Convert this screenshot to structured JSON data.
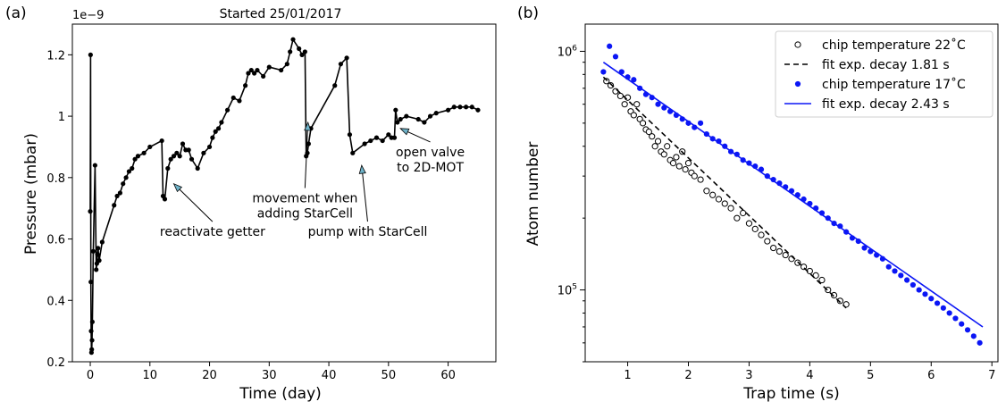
{
  "chart_data": [
    {
      "panel_label": "(a)",
      "type": "line",
      "title": "Started 25/01/2017",
      "xlabel": "Time (day)",
      "ylabel": "Pressure (mbar)",
      "y_multiplier": "1e−9",
      "xlim": [
        -3,
        68
      ],
      "ylim": [
        0.2,
        1.3
      ],
      "xticks": [
        0,
        10,
        20,
        30,
        40,
        50,
        60
      ],
      "yticks": [
        0.2,
        0.4,
        0.6,
        0.8,
        1.0,
        1.2
      ],
      "series": [
        {
          "color": "#000000",
          "x": [
            0.0,
            0.05,
            0.1,
            0.15,
            0.2,
            0.25,
            0.3,
            0.35,
            0.5,
            0.8,
            1.0,
            1.1,
            1.2,
            1.3,
            1.5,
            2.0,
            4.0,
            4.5,
            5.0,
            5.5,
            6.0,
            6.5,
            7.0,
            7.5,
            8.0,
            9.0,
            10.0,
            12.0,
            12.2,
            12.5,
            13.0,
            13.5,
            14.0,
            14.5,
            15.0,
            15.5,
            16.0,
            16.5,
            17.0,
            18.0,
            19.0,
            20.0,
            20.5,
            21.0,
            21.5,
            22.0,
            23.0,
            24.0,
            25.0,
            26.0,
            26.5,
            27.0,
            27.5,
            28.0,
            29.0,
            30.0,
            32.0,
            33.0,
            33.5,
            34.0,
            35.0,
            35.5,
            36.0,
            36.2,
            36.4,
            36.6,
            37.0,
            41.0,
            42.0,
            43.0,
            43.5,
            44.0,
            46.0,
            47.0,
            48.0,
            49.0,
            50.0,
            50.5,
            51.0,
            51.2,
            51.5,
            52.0,
            53.0,
            55.0,
            56.0,
            57.0,
            58.0,
            60.0,
            61.0,
            62.0,
            63.0,
            64.0,
            65.0
          ],
          "y": [
            0.69,
            1.2,
            0.46,
            0.3,
            0.23,
            0.24,
            0.27,
            0.33,
            0.56,
            0.84,
            0.5,
            0.52,
            0.55,
            0.57,
            0.53,
            0.59,
            0.71,
            0.74,
            0.75,
            0.78,
            0.8,
            0.82,
            0.83,
            0.86,
            0.87,
            0.88,
            0.9,
            0.92,
            0.74,
            0.73,
            0.83,
            0.86,
            0.87,
            0.88,
            0.87,
            0.91,
            0.89,
            0.89,
            0.86,
            0.83,
            0.88,
            0.9,
            0.93,
            0.95,
            0.96,
            0.98,
            1.02,
            1.06,
            1.05,
            1.1,
            1.14,
            1.15,
            1.14,
            1.15,
            1.13,
            1.16,
            1.15,
            1.17,
            1.21,
            1.25,
            1.22,
            1.2,
            1.21,
            0.87,
            0.88,
            0.91,
            0.96,
            1.1,
            1.17,
            1.19,
            0.94,
            0.88,
            0.91,
            0.92,
            0.93,
            0.92,
            0.94,
            0.93,
            0.93,
            1.02,
            0.98,
            0.99,
            1.0,
            0.99,
            0.98,
            1.0,
            1.01,
            1.02,
            1.03,
            1.03,
            1.03,
            1.03,
            1.02
          ]
        }
      ],
      "annotations": [
        {
          "lines": [
            "reactivate getter"
          ],
          "arrow_to": [
            14,
            0.78
          ],
          "text_at": [
            20.5,
            0.61
          ]
        },
        {
          "lines": [
            "movement when",
            "adding StarCell"
          ],
          "arrow_to": [
            36.5,
            0.98
          ],
          "text_at": [
            36,
            0.67
          ]
        },
        {
          "lines": [
            "pump with StarCell"
          ],
          "arrow_to": [
            45.5,
            0.84
          ],
          "text_at": [
            46.5,
            0.61
          ]
        },
        {
          "lines": [
            "open valve",
            "to 2D-MOT"
          ],
          "arrow_to": [
            52,
            0.96
          ],
          "text_at": [
            57,
            0.82
          ]
        }
      ]
    },
    {
      "panel_label": "(b)",
      "type": "scatter",
      "xlabel": "Trap time (s)",
      "ylabel": "Atom number",
      "yscale": "log",
      "xlim": [
        0.3,
        7.1
      ],
      "ylim": [
        50000,
        1300000
      ],
      "xticks": [
        1,
        2,
        3,
        4,
        5,
        6,
        7
      ],
      "yticks": [
        {
          "value": 100000,
          "label": "10^5"
        },
        {
          "value": 1000000,
          "label": "10^6"
        }
      ],
      "legend_position": "top-right",
      "series": [
        {
          "name": "chip temperature 22˚C",
          "marker": "open-circle",
          "color": "#000000",
          "x": [
            0.65,
            0.72,
            0.8,
            0.88,
            0.95,
            1.0,
            1.05,
            1.1,
            1.15,
            1.2,
            1.25,
            1.3,
            1.35,
            1.4,
            1.45,
            1.5,
            1.55,
            1.6,
            1.65,
            1.7,
            1.75,
            1.8,
            1.85,
            1.9,
            1.95,
            2.0,
            2.05,
            2.1,
            2.2,
            2.3,
            2.4,
            2.5,
            2.6,
            2.7,
            2.8,
            2.9,
            3.0,
            3.1,
            3.2,
            3.3,
            3.4,
            3.5,
            3.6,
            3.7,
            3.8,
            3.9,
            4.0,
            4.1,
            4.2,
            4.3,
            4.4,
            4.5,
            4.6
          ],
          "y": [
            750000,
            720000,
            680000,
            650000,
            600000,
            640000,
            560000,
            540000,
            600000,
            520000,
            500000,
            470000,
            460000,
            440000,
            400000,
            420000,
            380000,
            370000,
            400000,
            350000,
            340000,
            360000,
            330000,
            380000,
            320000,
            340000,
            310000,
            300000,
            290000,
            260000,
            250000,
            240000,
            230000,
            220000,
            200000,
            210000,
            190000,
            180000,
            170000,
            160000,
            150000,
            145000,
            140000,
            135000,
            130000,
            125000,
            120000,
            115000,
            110000,
            100000,
            95000,
            90000,
            87000
          ]
        },
        {
          "name": "fit exp. decay 1.81 s",
          "type": "line",
          "style": "dashed",
          "color": "#000000",
          "x": [
            0.6,
            4.6
          ],
          "y": [
            780000,
            84000
          ]
        },
        {
          "name": "chip temperature 17˚C",
          "marker": "filled-circle",
          "color": "#0b16f5",
          "x": [
            0.6,
            0.7,
            0.8,
            0.9,
            1.0,
            1.1,
            1.2,
            1.3,
            1.4,
            1.5,
            1.6,
            1.7,
            1.8,
            1.9,
            2.0,
            2.1,
            2.2,
            2.3,
            2.4,
            2.5,
            2.6,
            2.7,
            2.8,
            2.9,
            3.0,
            3.1,
            3.2,
            3.3,
            3.4,
            3.5,
            3.6,
            3.7,
            3.8,
            3.9,
            4.0,
            4.1,
            4.2,
            4.3,
            4.4,
            4.5,
            4.6,
            4.7,
            4.8,
            4.9,
            5.0,
            5.1,
            5.2,
            5.3,
            5.4,
            5.5,
            5.6,
            5.7,
            5.8,
            5.9,
            6.0,
            6.1,
            6.2,
            6.3,
            6.4,
            6.5,
            6.6,
            6.7,
            6.8
          ],
          "y": [
            820000,
            1050000,
            950000,
            820000,
            780000,
            760000,
            700000,
            660000,
            640000,
            600000,
            580000,
            560000,
            540000,
            520000,
            500000,
            480000,
            500000,
            450000,
            430000,
            420000,
            400000,
            380000,
            370000,
            350000,
            340000,
            330000,
            320000,
            300000,
            290000,
            280000,
            270000,
            260000,
            250000,
            240000,
            230000,
            220000,
            210000,
            200000,
            190000,
            185000,
            175000,
            165000,
            160000,
            150000,
            145000,
            140000,
            135000,
            125000,
            120000,
            115000,
            110000,
            105000,
            100000,
            96000,
            92000,
            88000,
            84000,
            80000,
            76000,
            72000,
            68000,
            64000,
            60000
          ]
        },
        {
          "name": "fit exp. decay 2.43 s",
          "type": "line",
          "style": "solid",
          "color": "#0b16f5",
          "x": [
            0.6,
            6.85
          ],
          "y": [
            900000,
            70000
          ]
        }
      ]
    }
  ]
}
